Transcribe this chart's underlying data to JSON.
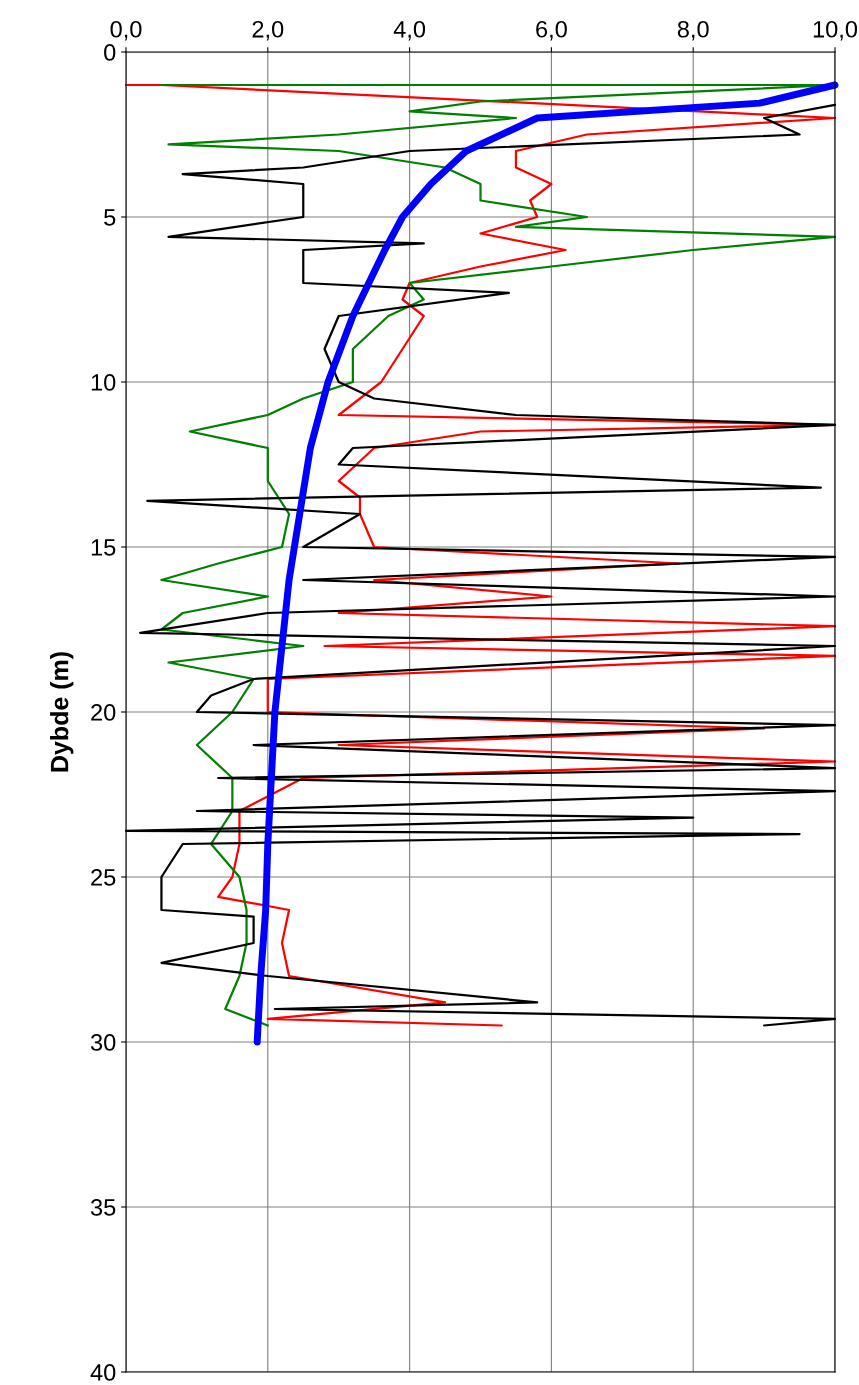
{
  "chart_data": {
    "type": "line",
    "ylabel": "Dybde (m)",
    "xlim": [
      0,
      10
    ],
    "ylim": [
      40,
      0
    ],
    "xticks": [
      {
        "value": 0,
        "label": "0,0"
      },
      {
        "value": 2,
        "label": "2,0"
      },
      {
        "value": 4,
        "label": "4,0"
      },
      {
        "value": 6,
        "label": "6,0"
      },
      {
        "value": 8,
        "label": "8,0"
      },
      {
        "value": 10,
        "label": "10,0"
      }
    ],
    "yticks": [
      0,
      5,
      10,
      15,
      20,
      25,
      30,
      35,
      40
    ],
    "grid": true,
    "marker": "none",
    "line_style": "solid",
    "series": [
      {
        "color": "#ff0000",
        "x": [
          0,
          0.5,
          10,
          6.5,
          5.5,
          5.5,
          6.0,
          5.7,
          5.8,
          5.0,
          6.2,
          5.0,
          4.0,
          3.9,
          4.2,
          3.9,
          3.6,
          3.0,
          10,
          5,
          3.5,
          3.0,
          3.3,
          3.3,
          3.5,
          7.8,
          3.5,
          6,
          3.0,
          10,
          2.8,
          10,
          2.0,
          2.0,
          9,
          3,
          10,
          2.5,
          1.6,
          1.6,
          1.5,
          1.3,
          2.3,
          2.2,
          2.3,
          4.5,
          2.0,
          5.3
        ],
        "values": [
          1,
          1,
          2,
          2.5,
          3,
          3.5,
          4,
          4.5,
          5,
          5.5,
          6,
          6.5,
          7,
          7.5,
          8,
          9,
          10,
          11,
          11.3,
          11.5,
          12,
          13,
          13.5,
          14,
          15,
          15.5,
          16,
          16.5,
          17,
          17.4,
          18,
          18.3,
          19,
          20,
          20.5,
          21,
          21.5,
          22,
          23,
          24,
          25,
          25.6,
          26,
          27,
          28,
          28.8,
          29.3,
          29.5
        ]
      },
      {
        "color": "#008000",
        "x": [
          0.5,
          10,
          5.0,
          4.0,
          5.5,
          3.0,
          0.6,
          3.0,
          4.5,
          5.0,
          5.0,
          6.5,
          5.5,
          10,
          8.0,
          6.0,
          4.0,
          4.2,
          3.7,
          3.2,
          3.2,
          2.5,
          2.0,
          0.9,
          2.0,
          2.0,
          2.3,
          2.2,
          1.3,
          0.5,
          2.0,
          0.8,
          0.5,
          2.5,
          0.6,
          1.8,
          1.5,
          1.0,
          1.5,
          1.5,
          1.2,
          1.6,
          1.7,
          1.7,
          1.6,
          1.4,
          2.0
        ],
        "values": [
          1,
          1,
          1.5,
          1.8,
          2.0,
          2.5,
          2.8,
          3.0,
          3.5,
          4.0,
          4.5,
          5.0,
          5.3,
          5.6,
          6.0,
          6.5,
          7.0,
          7.5,
          8,
          9,
          10,
          10.5,
          11,
          11.5,
          12,
          13,
          14,
          15,
          15.5,
          16,
          16.5,
          17,
          17.5,
          18,
          18.5,
          19,
          20,
          21,
          22,
          23,
          24,
          25,
          26,
          27,
          28,
          29,
          29.5
        ]
      },
      {
        "color": "#000000",
        "x": [
          10,
          9,
          9.5,
          4.0,
          2.5,
          0.8,
          2.5,
          2.5,
          0.6,
          4.2,
          2.5,
          2.5,
          5.4,
          3.0,
          2.8,
          3.0,
          3.5,
          5.5,
          10,
          3.2,
          3.0,
          9.8,
          0.3,
          3.3,
          2.5,
          10,
          2.5,
          10,
          2.0,
          0.2,
          10,
          1.8,
          1.2,
          1.0,
          10,
          1.8,
          10,
          1.3,
          10,
          1.0,
          8.0,
          0.0,
          9.5,
          0.8,
          0.5,
          0.5,
          1.8,
          1.8,
          0.5,
          2.0,
          5.8,
          2.1,
          10,
          9.0
        ],
        "values": [
          1.6,
          2.0,
          2.5,
          3.0,
          3.5,
          3.7,
          4,
          5,
          5.6,
          5.8,
          6,
          7,
          7.3,
          8,
          9,
          10,
          10.5,
          11,
          11.3,
          12,
          12.5,
          13.2,
          13.6,
          14,
          15,
          15.3,
          16,
          16.5,
          17,
          17.6,
          18,
          19,
          19.5,
          20,
          20.4,
          21,
          21.7,
          22,
          22.4,
          23,
          23.2,
          23.6,
          23.7,
          24,
          25,
          26,
          26.2,
          27,
          27.6,
          28,
          28.8,
          29,
          29.3,
          29.5
        ]
      },
      {
        "color": "#0000ff",
        "x": [
          10,
          8.94,
          5.8,
          4.8,
          4.3,
          3.9,
          3.65,
          3.2,
          2.85,
          2.6,
          2.45,
          2.3,
          2.2,
          2.1,
          2.05,
          2.0,
          1.97,
          1.9,
          1.85
        ],
        "values": [
          1,
          1.55,
          2,
          3,
          4,
          5,
          6,
          8,
          10,
          12,
          14,
          16,
          18,
          20,
          22,
          24,
          26,
          28,
          30
        ]
      }
    ]
  }
}
